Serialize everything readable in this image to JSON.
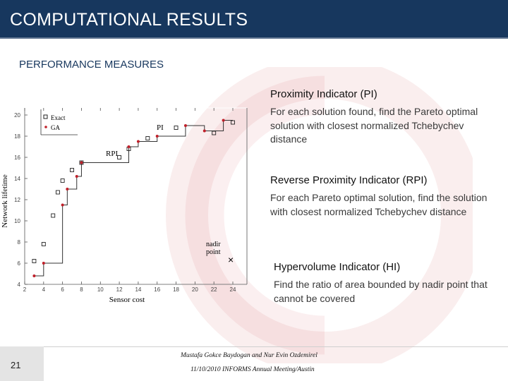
{
  "header": {
    "title": "COMPUTATIONAL RESULTS"
  },
  "section": {
    "subtitle": "PERFORMANCE MEASURES"
  },
  "measures": [
    {
      "heading": "Proximity Indicator (PI)",
      "description": "For each solution found, find the Pareto optimal solution with closest normalized Tchebychev distance"
    },
    {
      "heading": "Reverse Proximity Indicator (RPI)",
      "description": "For each Pareto optimal solution, find the solution with closest normalized Tchebychev distance"
    },
    {
      "heading": "Hypervolume Indicator (HI)",
      "description": "Find the ratio of area bounded by nadir point that cannot be covered"
    }
  ],
  "footer": {
    "page_number": "21",
    "authors": "Mustafa Gokce Baydogan and Nur Evin Ozdemirel",
    "event": "11/10/2010 INFORMS Annual Meeting/Austin"
  },
  "colors": {
    "title_bar": "#17375e",
    "ga_points": "#c0202a",
    "watermark": "#c0202a"
  },
  "chart_data": {
    "type": "scatter",
    "xlabel": "Sensor cost",
    "ylabel": "Network lifetime",
    "xlim": [
      2,
      24
    ],
    "ylim": [
      4,
      20
    ],
    "x_ticks": [
      "2",
      "4",
      "6",
      "8",
      "10",
      "12",
      "14",
      "16",
      "18",
      "20",
      "22",
      "24"
    ],
    "y_ticks": [
      "4",
      "6",
      "8",
      "10",
      "12",
      "14",
      "16",
      "18",
      "20"
    ],
    "x_tick_values": [
      2,
      4,
      6,
      8,
      10,
      12,
      14,
      16,
      18,
      20,
      22,
      24
    ],
    "y_tick_values": [
      4,
      6,
      8,
      10,
      12,
      14,
      16,
      18,
      20
    ],
    "legend": {
      "position": "top-left",
      "entries": [
        "Exact",
        "GA"
      ]
    },
    "series": [
      {
        "name": "Exact",
        "marker": "square",
        "points": [
          [
            3,
            6.2
          ],
          [
            4,
            7.8
          ],
          [
            5,
            10.5
          ],
          [
            5.5,
            12.7
          ],
          [
            6,
            13.8
          ],
          [
            7,
            14.8
          ],
          [
            8,
            15.5
          ],
          [
            12,
            16
          ],
          [
            13,
            16.8
          ],
          [
            15,
            17.8
          ],
          [
            18,
            18.8
          ],
          [
            22,
            18.3
          ],
          [
            24,
            19.3
          ]
        ]
      },
      {
        "name": "GA",
        "marker": "dot",
        "points": [
          [
            3,
            4.8
          ],
          [
            4,
            6
          ],
          [
            6,
            11.5
          ],
          [
            6.5,
            13
          ],
          [
            7.5,
            14.2
          ],
          [
            8,
            15.5
          ],
          [
            13,
            17
          ],
          [
            14,
            17.5
          ],
          [
            16,
            18
          ],
          [
            19,
            19
          ],
          [
            21,
            18.5
          ],
          [
            23,
            19.5
          ]
        ]
      }
    ],
    "annotations": [
      "PI",
      "RPI",
      "nadir point"
    ],
    "nadir_point": [
      24,
      6
    ]
  }
}
